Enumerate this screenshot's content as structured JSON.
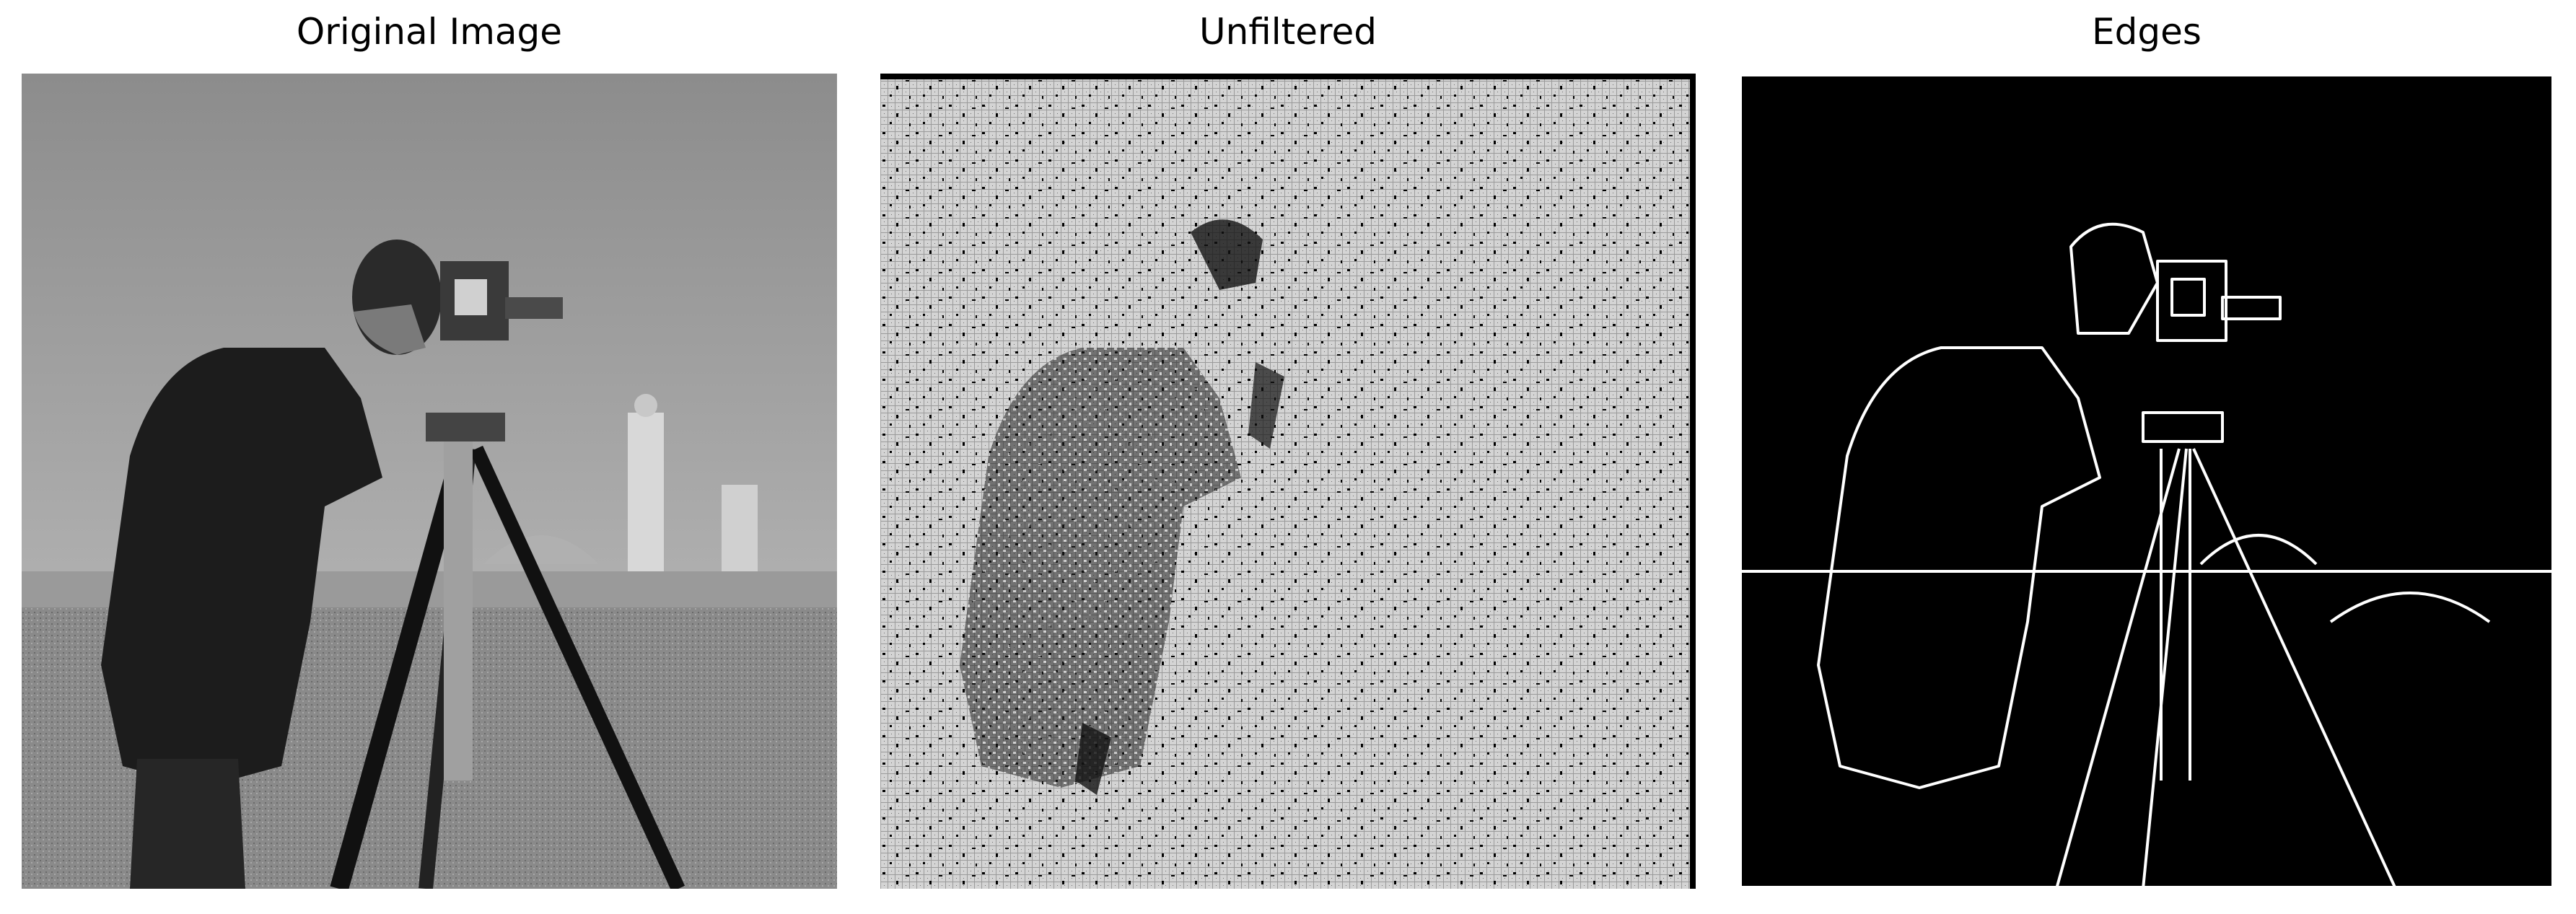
{
  "figure": {
    "panels": [
      {
        "title": "Original Image",
        "image": "grayscale photograph of a cameraman with a film camera on a tripod, buildings in background"
      },
      {
        "title": "Unfiltered",
        "image": "dense dotted grid pattern with dark noise outlining the cameraman"
      },
      {
        "title": "Edges",
        "image": "white edge outlines of the cameraman and tripod on black background"
      }
    ]
  },
  "colors": {
    "background": "#ffffff",
    "text": "#000000"
  }
}
